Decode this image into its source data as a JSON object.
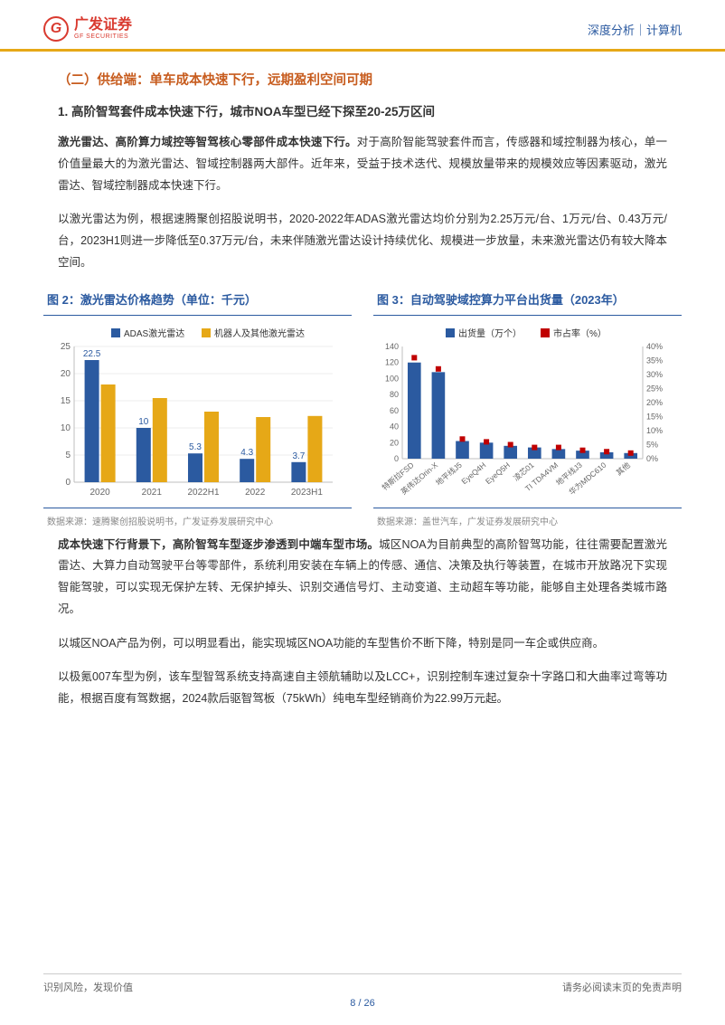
{
  "header": {
    "logo_g": "G",
    "logo_cn": "广发证券",
    "logo_en": "GF SECURITIES",
    "right": "深度分析｜计算机"
  },
  "section_title": "（二）供给端：单车成本快速下行，远期盈利空间可期",
  "sub_title": "1.  高阶智驾套件成本快速下行，城市NOA车型已经下探至20-25万区间",
  "para1_bold": "激光雷达、高阶算力域控等智驾核心零部件成本快速下行。",
  "para1_rest": "对于高阶智能驾驶套件而言，传感器和域控制器为核心，单一价值量最大的为激光雷达、智域控制器两大部件。近年来，受益于技术迭代、规模放量带来的规模效应等因素驱动，激光雷达、智域控制器成本快速下行。",
  "para2": "以激光雷达为例，根据速腾聚创招股说明书，2020-2022年ADAS激光雷达均价分别为2.25万元/台、1万元/台、0.43万元/台，2023H1则进一步降低至0.37万元/台，未来伴随激光雷达设计持续优化、规模进一步放量，未来激光雷达仍有较大降本空间。",
  "chart2": {
    "title_prefix": "图  2：",
    "title": "激光雷达价格趋势（单位：千元）",
    "type": "bar",
    "legend": [
      "ADAS激光雷达",
      "机器人及其他激光雷达"
    ],
    "legend_colors": [
      "#2b5aa0",
      "#e6a817"
    ],
    "categories": [
      "2020",
      "2021",
      "2022H1",
      "2022",
      "2023H1"
    ],
    "series1_values": [
      22.5,
      10,
      5.3,
      4.3,
      3.7
    ],
    "series2_values": [
      18,
      15.5,
      13,
      12,
      12.2
    ],
    "ylim": [
      0,
      25
    ],
    "ytick_step": 5,
    "bar_colors": [
      "#2b5aa0",
      "#e6a817"
    ],
    "label_color": "#2b5aa0",
    "axis_color": "#bfbfbf",
    "grid_color": "#d9d9d9",
    "label_fontsize": 10,
    "source": "数据来源：速腾聚创招股说明书，广发证券发展研究中心"
  },
  "chart3": {
    "title_prefix": "图  3：",
    "title": "自动驾驶域控算力平台出货量（2023年）",
    "type": "bar-line",
    "legend": [
      "出货量（万个）",
      "市占率（%）"
    ],
    "legend_colors": [
      "#2b5aa0",
      "#c00000"
    ],
    "categories": [
      "特斯拉FSD",
      "英伟达Orin-X",
      "地平线J5",
      "EyeQ4H",
      "EyeQ5H",
      "凌芯01",
      "TI TDA4VM",
      "地平线J3",
      "华为MDC610",
      "其他"
    ],
    "bar_values": [
      120,
      108,
      22,
      20,
      16,
      14,
      12,
      10,
      8,
      7
    ],
    "line_values": [
      36,
      32,
      7,
      6,
      5,
      4,
      4,
      3,
      2.5,
      2
    ],
    "ylim_left": [
      0,
      140
    ],
    "ytick_left_step": 20,
    "ylim_right": [
      0,
      40
    ],
    "ytick_right_step": 5,
    "bar_color": "#2b5aa0",
    "marker_color": "#c00000",
    "axis_color": "#bfbfbf",
    "source": "数据来源：盖世汽车，广发证券发展研究中心"
  },
  "para3_bold": "成本快速下行背景下，高阶智驾车型逐步渗透到中端车型市场。",
  "para3_rest": "城区NOA为目前典型的高阶智驾功能，往往需要配置激光雷达、大算力自动驾驶平台等零部件，系统利用安装在车辆上的传感、通信、决策及执行等装置，在城市开放路况下实现智能驾驶，可以实现无保护左转、无保护掉头、识别交通信号灯、主动变道、主动超车等功能，能够自主处理各类城市路况。",
  "para4": "以城区NOA产品为例，可以明显看出，能实现城区NOA功能的车型售价不断下降，特别是同一车企或供应商。",
  "para5": "以极氪007车型为例，该车型智驾系统支持高速自主领航辅助以及LCC+，识别控制车速过复杂十字路口和大曲率过弯等功能，根据百度有驾数据，2024款后驱智驾板（75kWh）纯电车型经销商价为22.99万元起。",
  "footer": {
    "left": "识别风险，发现价值",
    "right": "请务必阅读末页的免责声明",
    "page": "8  /  26"
  }
}
